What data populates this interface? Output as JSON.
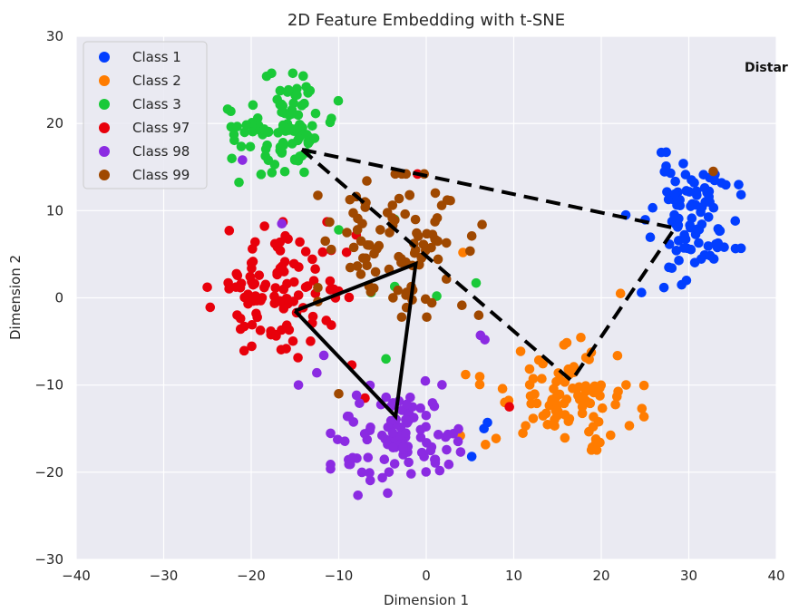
{
  "chart_data": {
    "type": "scatter",
    "title": "2D Feature Embedding with t-SNE",
    "xlabel": "Dimension 1",
    "ylabel": "Dimension 2",
    "xlim": [
      -40,
      40
    ],
    "ylim": [
      -30,
      30
    ],
    "xticks": [
      -40,
      -30,
      -20,
      -10,
      0,
      10,
      20,
      30,
      40
    ],
    "yticks": [
      -30,
      -20,
      -10,
      0,
      10,
      20,
      30
    ],
    "xtick_labels": [
      "−40",
      "−30",
      "−20",
      "−10",
      "0",
      "10",
      "20",
      "30",
      "40"
    ],
    "ytick_labels": [
      "−30",
      "−20",
      "−10",
      "0",
      "10",
      "20",
      "30"
    ],
    "grid": true,
    "background": "#eaeaf2",
    "legend_position": "top-left",
    "annotation": "Distar",
    "series": [
      {
        "name": "Class 1",
        "color": "#023eff",
        "center": [
          30.5,
          9
        ],
        "spread": [
          2.8,
          4.0
        ],
        "count": 90,
        "seed": 11,
        "outliers": [
          [
            5.2,
            -18.2
          ],
          [
            7.0,
            -14.3
          ],
          [
            6.6,
            -15.0
          ],
          [
            24.6,
            0.6
          ],
          [
            28.4,
            11.9
          ],
          [
            22.8,
            9.5
          ]
        ]
      },
      {
        "name": "Class 2",
        "color": "#ff7c00",
        "center": [
          15.5,
          -11
        ],
        "spread": [
          4.8,
          3.3
        ],
        "count": 95,
        "seed": 22,
        "outliers": [
          [
            22.2,
            0.5
          ],
          [
            4.2,
            5.2
          ],
          [
            3.9,
            -15.8
          ],
          [
            4.5,
            -8.8
          ]
        ]
      },
      {
        "name": "Class 3",
        "color": "#1ac938",
        "center": [
          -16.5,
          19.5
        ],
        "spread": [
          3.3,
          3.2
        ],
        "count": 100,
        "seed": 33,
        "outliers": [
          [
            -10.0,
            7.8
          ],
          [
            -3.6,
            1.3
          ],
          [
            -4.6,
            -7.0
          ],
          [
            5.7,
            1.7
          ],
          [
            1.2,
            0.2
          ],
          [
            -6.3,
            0.6
          ],
          [
            -3.6,
            9.0
          ]
        ]
      },
      {
        "name": "Class 97",
        "color": "#e8000b",
        "center": [
          -17.5,
          0.5
        ],
        "spread": [
          4.6,
          4.2
        ],
        "count": 110,
        "seed": 44,
        "outliers": [
          [
            -8.0,
            7.2
          ],
          [
            -1.0,
            14.2
          ],
          [
            9.5,
            -12.5
          ],
          [
            -7.0,
            -11.5
          ]
        ]
      },
      {
        "name": "Class 98",
        "color": "#8b2be2",
        "center": [
          -3.5,
          -16
        ],
        "spread": [
          3.8,
          3.4
        ],
        "count": 100,
        "seed": 55,
        "outliers": [
          [
            -21.0,
            15.8
          ],
          [
            -16.5,
            8.5
          ],
          [
            6.2,
            -4.3
          ],
          [
            6.7,
            -4.8
          ],
          [
            -14.6,
            -10.0
          ],
          [
            -11.7,
            -6.6
          ],
          [
            -12.5,
            -8.6
          ]
        ]
      },
      {
        "name": "Class 99",
        "color": "#9f4800",
        "center": [
          -3,
          6
        ],
        "spread": [
          4.8,
          4.2
        ],
        "count": 95,
        "seed": 66,
        "outliers": [
          [
            32.8,
            14.5
          ],
          [
            -7.0,
            11.0
          ],
          [
            -10.0,
            -11.0
          ],
          [
            6.0,
            -2.0
          ]
        ]
      }
    ],
    "overlays": [
      {
        "style": "dashed",
        "points": [
          [
            -14.2,
            17.0
          ],
          [
            28.4,
            8.0
          ],
          [
            16.6,
            -9.5
          ],
          [
            -14.2,
            17.0
          ]
        ]
      },
      {
        "style": "solid",
        "points": [
          [
            -15.0,
            -1.5
          ],
          [
            -1.2,
            3.9
          ],
          [
            -3.5,
            -13.6
          ],
          [
            -15.0,
            -1.5
          ]
        ]
      }
    ]
  }
}
